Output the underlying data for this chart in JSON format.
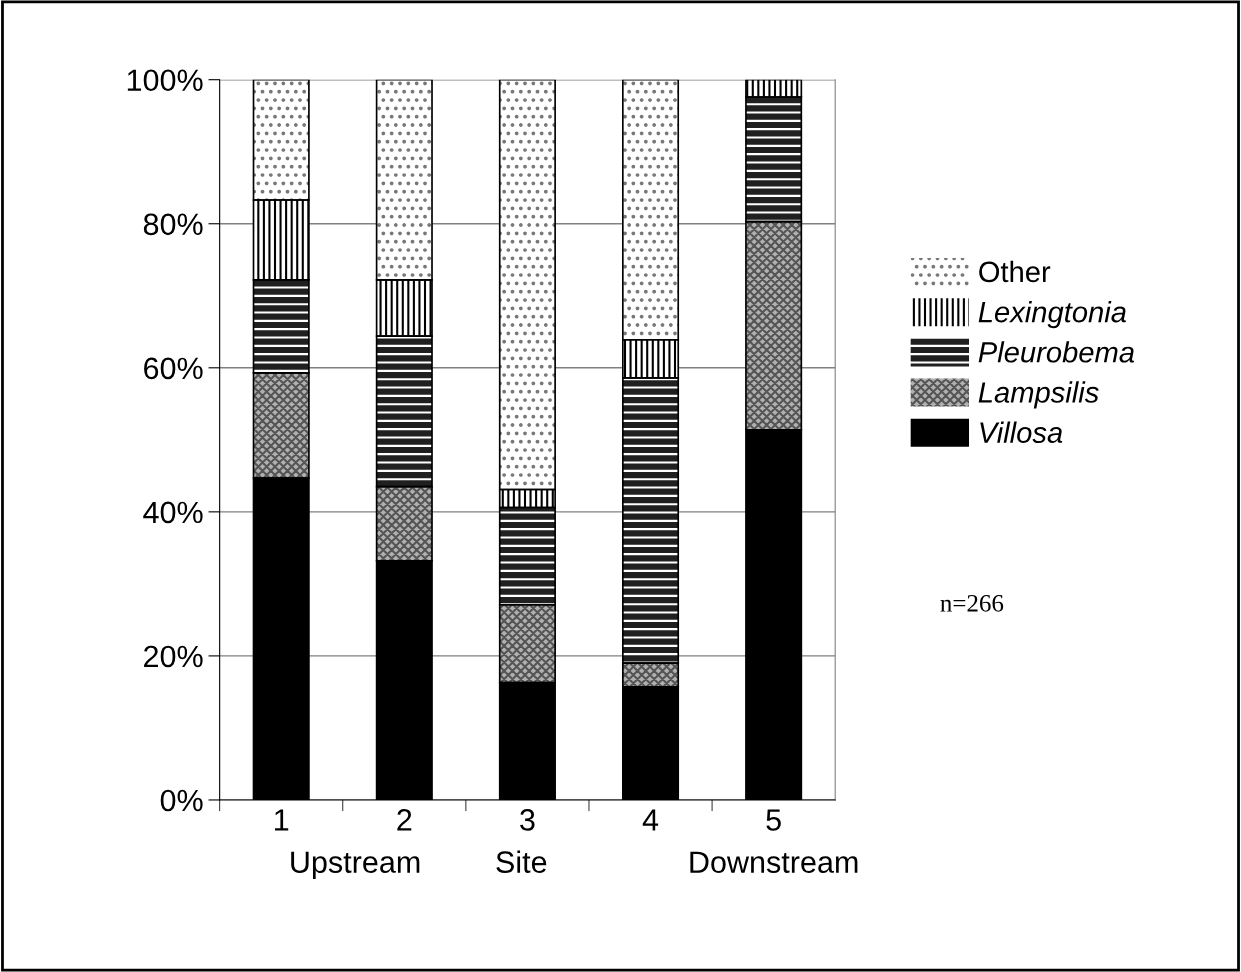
{
  "chart_data": {
    "type": "bar",
    "stacked": true,
    "categories": [
      "1",
      "2",
      "3",
      "4",
      "5"
    ],
    "series": [
      {
        "name": "Villosa",
        "color": "#000000",
        "values": [
          44.7,
          33.2,
          16.3,
          15.7,
          51.4
        ]
      },
      {
        "name": "Lampsilis",
        "color": "#b0b0b0",
        "values": [
          14.6,
          10.3,
          10.8,
          3.3,
          28.9
        ]
      },
      {
        "name": "Pleurobema",
        "color": "#202020",
        "values": [
          12.9,
          20.9,
          13.5,
          39.6,
          17.3
        ]
      },
      {
        "name": "Lexingtonia",
        "color": "#ffffff",
        "values": [
          11.1,
          7.8,
          2.5,
          5.3,
          2.4
        ]
      },
      {
        "name": "Other",
        "color": "#ffffff",
        "values": [
          16.7,
          27.8,
          56.9,
          36.1,
          0
        ]
      }
    ],
    "ylim": [
      0,
      100
    ],
    "yticks": [
      {
        "value": 0,
        "label": "0%"
      },
      {
        "value": 20,
        "label": "20%"
      },
      {
        "value": 40,
        "label": "40%"
      },
      {
        "value": 60,
        "label": "60%"
      },
      {
        "value": 80,
        "label": "80%"
      },
      {
        "value": 100,
        "label": "100%"
      }
    ],
    "grid": "y",
    "legend": "right",
    "annotations": [
      "Upstream",
      "Site",
      "Downstream",
      "n=266"
    ]
  }
}
